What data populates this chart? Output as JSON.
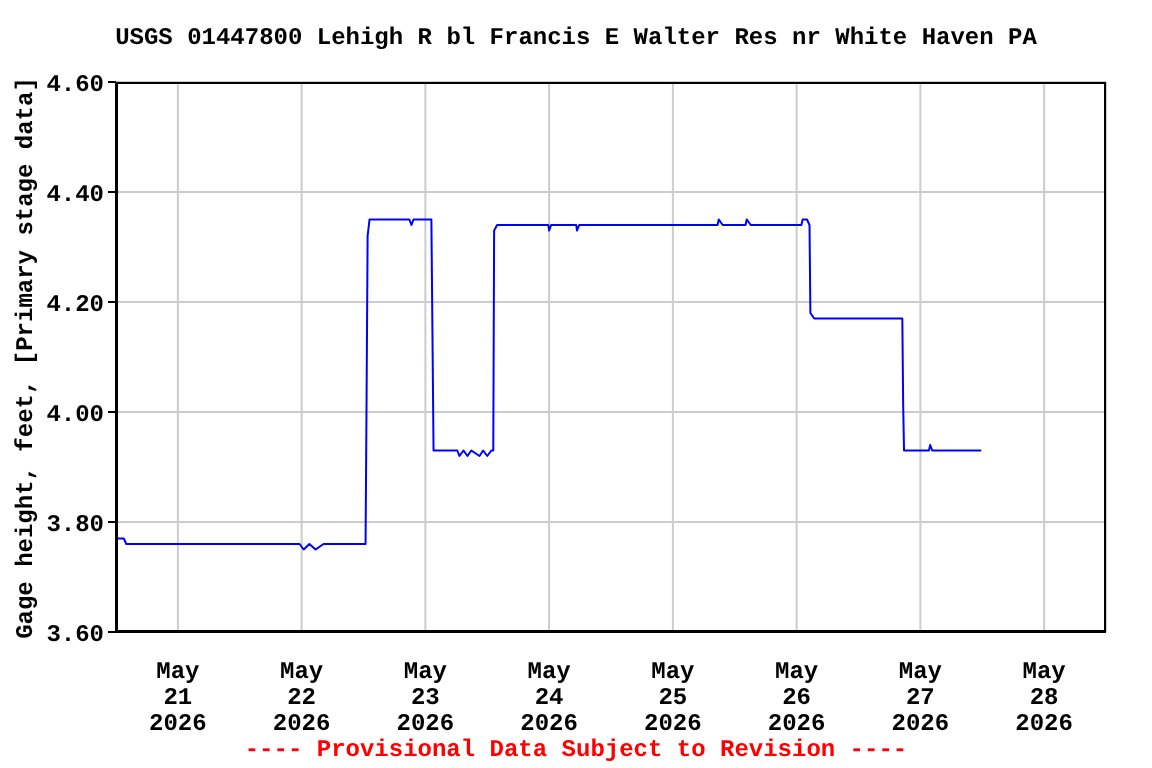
{
  "chart_data": {
    "type": "line",
    "title": "USGS 01447800 Lehigh R bl Francis E Walter Res nr White Haven PA",
    "ylabel": "Gage height, feet, [Primary stage data]",
    "annotations": [
      "---- Provisional Data Subject to Revision ----"
    ],
    "x": [
      "2026-05-20T12:00",
      "2026-05-20T13:30",
      "2026-05-20T14:00",
      "2026-05-21T23:36",
      "2026-05-22T00:24",
      "2026-05-22T01:30",
      "2026-05-22T02:42",
      "2026-05-22T04:15",
      "2026-05-22T12:24",
      "2026-05-22T12:36",
      "2026-05-22T12:48",
      "2026-05-22T13:10",
      "2026-05-22T20:40",
      "2026-05-22T20:54",
      "2026-05-22T21:18",
      "2026-05-22T21:42",
      "2026-05-23T01:10",
      "2026-05-23T01:35",
      "2026-05-23T06:12",
      "2026-05-23T06:36",
      "2026-05-23T07:24",
      "2026-05-23T08:10",
      "2026-05-23T08:54",
      "2026-05-23T10:30",
      "2026-05-23T11:12",
      "2026-05-23T12:00",
      "2026-05-23T12:48",
      "2026-05-23T13:10",
      "2026-05-23T13:20",
      "2026-05-23T13:55",
      "2026-05-23T23:50",
      "2026-05-24T00:00",
      "2026-05-24T00:24",
      "2026-05-24T05:15",
      "2026-05-24T05:25",
      "2026-05-24T05:50",
      "2026-05-25T08:40",
      "2026-05-25T08:54",
      "2026-05-25T09:40",
      "2026-05-25T14:05",
      "2026-05-25T14:20",
      "2026-05-25T15:06",
      "2026-05-26T00:55",
      "2026-05-26T01:10",
      "2026-05-26T02:00",
      "2026-05-26T02:30",
      "2026-05-26T02:40",
      "2026-05-26T03:25",
      "2026-05-26T20:30",
      "2026-05-26T20:40",
      "2026-05-26T20:50",
      "2026-05-27T01:40",
      "2026-05-27T01:54",
      "2026-05-27T02:18",
      "2026-05-27T11:48"
    ],
    "series": [
      {
        "color": "#0000ff",
        "values": [
          3.77,
          3.77,
          3.76,
          3.76,
          3.75,
          3.76,
          3.75,
          3.76,
          3.76,
          4.03,
          4.32,
          4.35,
          4.35,
          4.35,
          4.34,
          4.35,
          4.35,
          3.93,
          3.93,
          3.92,
          3.93,
          3.92,
          3.93,
          3.92,
          3.93,
          3.92,
          3.93,
          3.93,
          4.33,
          4.34,
          4.34,
          4.33,
          4.34,
          4.34,
          4.33,
          4.34,
          4.34,
          4.35,
          4.34,
          4.34,
          4.35,
          4.34,
          4.34,
          4.35,
          4.35,
          4.34,
          4.18,
          4.17,
          4.17,
          4.01,
          3.93,
          3.93,
          3.94,
          3.93,
          3.93
        ]
      }
    ],
    "xlim": [
      "2026-05-20T12:00",
      "2026-05-28T12:00"
    ],
    "xticks": [
      {
        "value": "2026-05-21",
        "label": "May 21 2026"
      },
      {
        "value": "2026-05-22",
        "label": "May 22 2026"
      },
      {
        "value": "2026-05-23",
        "label": "May 23 2026"
      },
      {
        "value": "2026-05-24",
        "label": "May 24 2026"
      },
      {
        "value": "2026-05-25",
        "label": "May 25 2026"
      },
      {
        "value": "2026-05-26",
        "label": "May 26 2026"
      },
      {
        "value": "2026-05-27",
        "label": "May 27 2026"
      },
      {
        "value": "2026-05-28",
        "label": "May 28 2026"
      }
    ],
    "ylim": [
      3.6,
      4.6
    ],
    "yticks": [
      {
        "value": 3.6,
        "label": "3.60"
      },
      {
        "value": 3.8,
        "label": "3.80"
      },
      {
        "value": 4.0,
        "label": "4.00"
      },
      {
        "value": 4.2,
        "label": "4.20"
      },
      {
        "value": 4.4,
        "label": "4.40"
      },
      {
        "value": 4.6,
        "label": "4.60"
      }
    ],
    "grid": true,
    "marker": "none",
    "line_style": "solid"
  }
}
